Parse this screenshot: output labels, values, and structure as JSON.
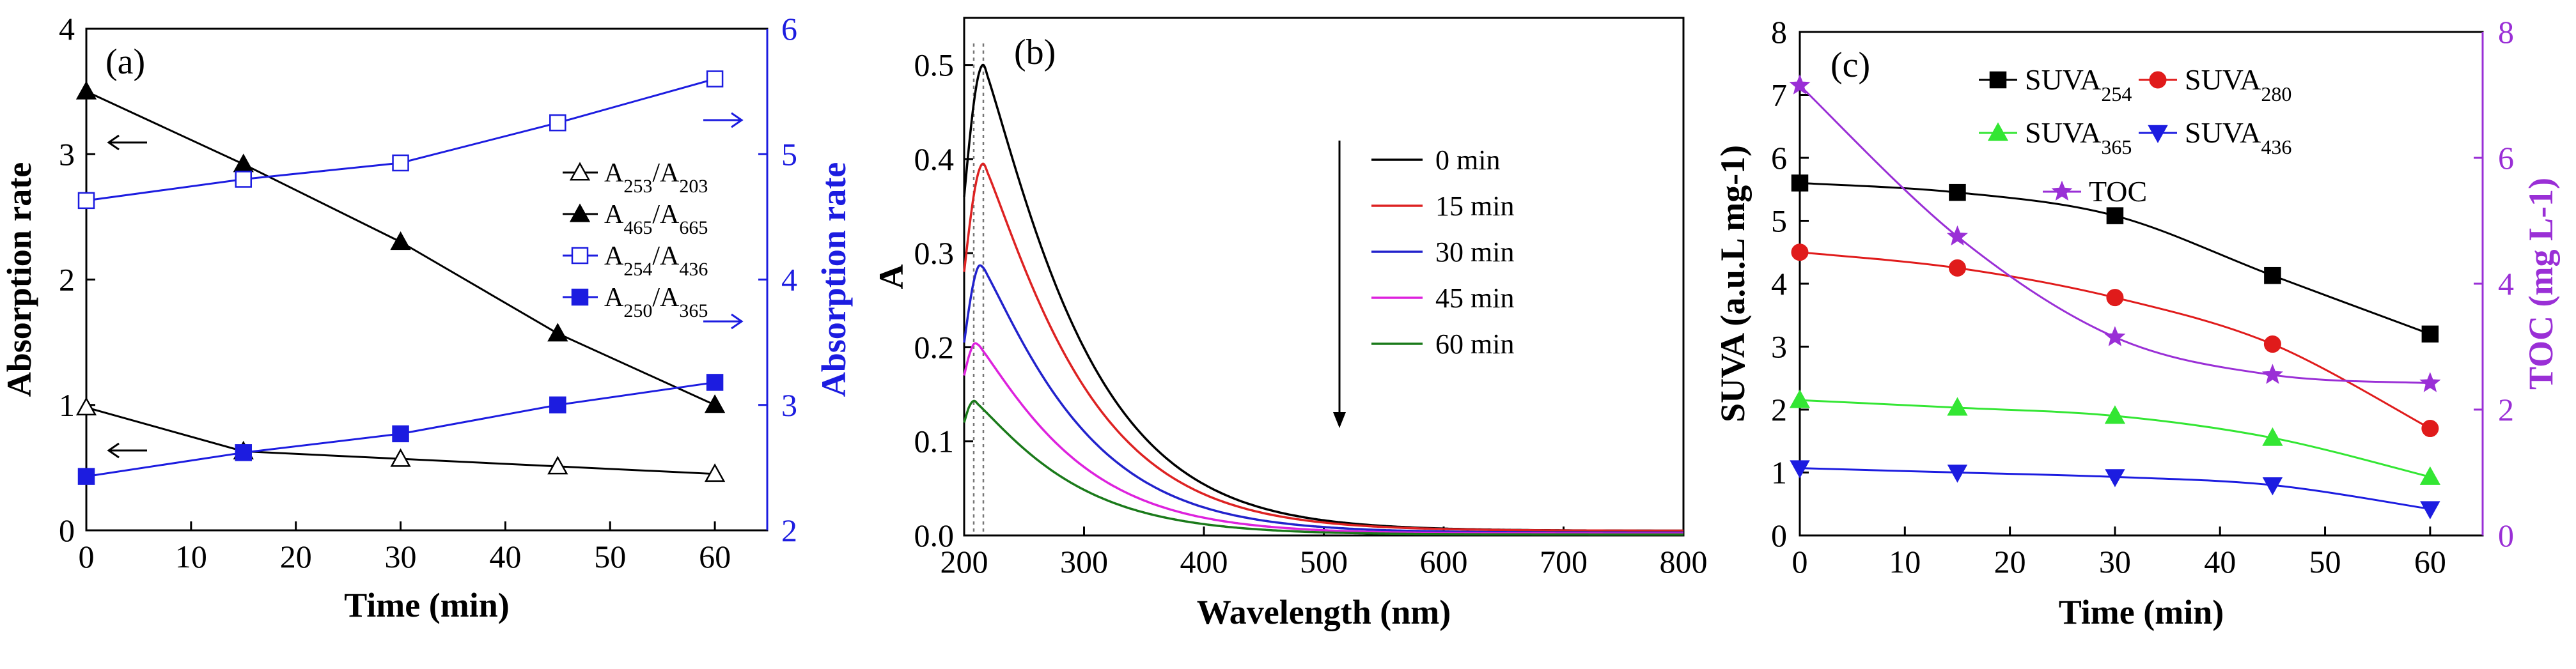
{
  "chart_data": [
    {
      "type": "line",
      "panel_label": "(a)",
      "xlabel": "Time (min)",
      "ylabel": "Absorption rate",
      "ylabel_right": "Absorption rate",
      "xlim": [
        0,
        65
      ],
      "ylim": [
        0,
        4
      ],
      "ylim_right": [
        2,
        6
      ],
      "x_ticks": [
        "0",
        "10",
        "20",
        "30",
        "40",
        "50",
        "60"
      ],
      "y_ticks": [
        "0",
        "1",
        "2",
        "3",
        "4"
      ],
      "y_right_ticks": [
        "2",
        "3",
        "4",
        "5",
        "6"
      ],
      "x": [
        0,
        15,
        30,
        45,
        60
      ],
      "series": [
        {
          "name": "A253/A203",
          "base": "A",
          "sub1": "253",
          "sub2": "203",
          "axis": "left",
          "color": "#000000",
          "marker": "triangle-open",
          "values": [
            0.98,
            0.63,
            0.57,
            0.51,
            0.45
          ]
        },
        {
          "name": "A465/A665",
          "base": "A",
          "sub1": "465",
          "sub2": "665",
          "axis": "left",
          "color": "#000000",
          "marker": "triangle-filled",
          "values": [
            3.5,
            2.92,
            2.3,
            1.57,
            1.0
          ]
        },
        {
          "name": "A254/A436",
          "base": "A",
          "sub1": "254",
          "sub2": "436",
          "axis": "right",
          "color": "#1c1ce0",
          "marker": "square-open",
          "values": [
            4.63,
            4.8,
            4.93,
            5.25,
            5.6
          ]
        },
        {
          "name": "A250/A365",
          "base": "A",
          "sub1": "250",
          "sub2": "365",
          "axis": "right",
          "color": "#1c1ce0",
          "marker": "square-filled",
          "values": [
            2.43,
            2.62,
            2.77,
            3.0,
            3.18
          ]
        }
      ],
      "annotations": [
        "left arrow near A465/A665 curve",
        "left arrow near A253/A203 curve",
        "right arrows pointing to right axis"
      ]
    },
    {
      "type": "line",
      "panel_label": "(b)",
      "xlabel": "Wavelength (nm)",
      "ylabel": "A",
      "xlim": [
        200,
        800
      ],
      "ylim": [
        0,
        0.55
      ],
      "x_ticks": [
        "200",
        "300",
        "400",
        "500",
        "600",
        "700",
        "800"
      ],
      "y_ticks": [
        "0.0",
        "0.1",
        "0.2",
        "0.3",
        "0.4",
        "0.5"
      ],
      "peak_wavelengths": [
        216,
        208
      ],
      "series": [
        {
          "name": "0 min",
          "color": "#000000",
          "peak_x": 216,
          "peak_y": 0.5,
          "start_y": 0.36,
          "tail_y": 0.005
        },
        {
          "name": "15 min",
          "color": "#dd2222",
          "peak_x": 216,
          "peak_y": 0.395,
          "start_y": 0.28,
          "tail_y": 0.005
        },
        {
          "name": "30 min",
          "color": "#2222cc",
          "peak_x": 214,
          "peak_y": 0.288,
          "start_y": 0.205,
          "tail_y": 0.003
        },
        {
          "name": "45 min",
          "color": "#dd22dd",
          "peak_x": 210,
          "peak_y": 0.205,
          "start_y": 0.17,
          "tail_y": 0.002
        },
        {
          "name": "60 min",
          "color": "#1a7a1a",
          "peak_x": 208,
          "peak_y": 0.143,
          "start_y": 0.12,
          "tail_y": 0.001
        }
      ],
      "annotations": [
        "downward arrow indicating decreasing absorbance with time",
        "dotted vertical lines at peak wavelengths"
      ]
    },
    {
      "type": "line",
      "panel_label": "(c)",
      "xlabel": "Time (min)",
      "ylabel": "SUVA (a.u.L mg-1)",
      "ylabel_right": "TOC (mg L-1)",
      "xlim": [
        0,
        65
      ],
      "ylim": [
        0,
        8
      ],
      "ylim_right": [
        0,
        8
      ],
      "x_ticks": [
        "0",
        "10",
        "20",
        "30",
        "40",
        "50",
        "60"
      ],
      "y_ticks": [
        "0",
        "1",
        "2",
        "3",
        "4",
        "5",
        "6",
        "7",
        "8"
      ],
      "y_right_ticks": [
        "0",
        "2",
        "4",
        "6",
        "8"
      ],
      "x": [
        0,
        15,
        30,
        45,
        60
      ],
      "series": [
        {
          "name": "SUVA254",
          "base": "SUVA",
          "sub": "254",
          "axis": "left",
          "color": "#000000",
          "marker": "square",
          "values": [
            5.6,
            5.45,
            5.08,
            4.13,
            3.2
          ]
        },
        {
          "name": "SUVA280",
          "base": "SUVA",
          "sub": "280",
          "axis": "left",
          "color": "#e01b1b",
          "marker": "circle",
          "values": [
            4.5,
            4.25,
            3.78,
            3.04,
            1.7
          ]
        },
        {
          "name": "SUVA365",
          "base": "SUVA",
          "sub": "365",
          "axis": "left",
          "color": "#33e633",
          "marker": "triangle-up",
          "values": [
            2.15,
            2.03,
            1.9,
            1.55,
            0.93
          ]
        },
        {
          "name": "SUVA436",
          "base": "SUVA",
          "sub": "436",
          "axis": "left",
          "color": "#1c1ce0",
          "marker": "triangle-down",
          "values": [
            1.07,
            1.0,
            0.93,
            0.8,
            0.42
          ]
        },
        {
          "name": "TOC",
          "base": "TOC",
          "sub": "",
          "axis": "right",
          "color": "#9a2fd6",
          "marker": "star",
          "values": [
            7.15,
            4.75,
            3.15,
            2.55,
            2.42
          ]
        }
      ]
    }
  ]
}
